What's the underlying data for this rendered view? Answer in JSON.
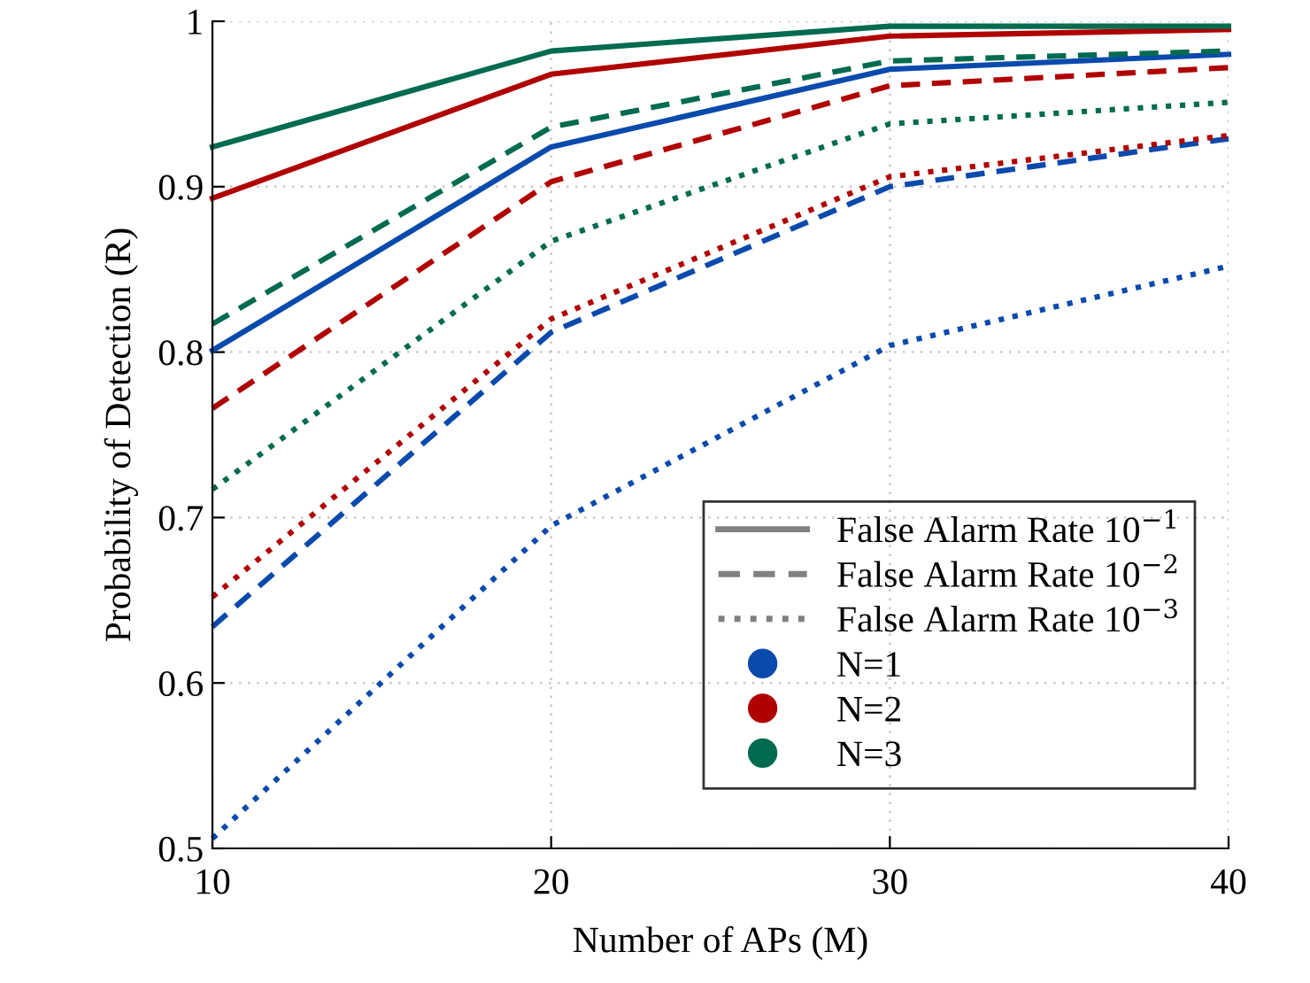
{
  "chart_data": {
    "type": "line",
    "xlabel": "Number of APs (M)",
    "ylabel": "Probability of Detection (R)",
    "x": [
      10,
      20,
      30,
      40
    ],
    "series": [
      {
        "name": "N=1",
        "color": "#0a4aad",
        "line_style": "solid",
        "values": [
          0.801,
          0.924,
          0.971,
          0.98
        ]
      },
      {
        "name": "N=2",
        "color": "#b00000",
        "line_style": "solid",
        "values": [
          0.893,
          0.968,
          0.991,
          0.995
        ]
      },
      {
        "name": "N=3",
        "color": "#006b4f",
        "line_style": "solid",
        "values": [
          0.924,
          0.982,
          0.997,
          0.997
        ]
      },
      {
        "color": "#0a4aad",
        "line_style": "dashed",
        "values": [
          0.634,
          0.812,
          0.9,
          0.929
        ]
      },
      {
        "color": "#b00000",
        "line_style": "dashed",
        "values": [
          0.766,
          0.903,
          0.961,
          0.972
        ]
      },
      {
        "color": "#006b4f",
        "line_style": "dashed",
        "values": [
          0.817,
          0.936,
          0.976,
          0.982
        ]
      },
      {
        "color": "#0a4aad",
        "line_style": "dotted",
        "values": [
          0.506,
          0.695,
          0.804,
          0.852
        ]
      },
      {
        "color": "#b00000",
        "line_style": "dotted",
        "values": [
          0.652,
          0.82,
          0.906,
          0.931
        ]
      },
      {
        "color": "#006b4f",
        "line_style": "dotted",
        "values": [
          0.717,
          0.867,
          0.938,
          0.951
        ]
      }
    ],
    "annotations": [
      "False Alarm Rate 10$^{−1}$",
      "False Alarm Rate 10$^{−2}$",
      "False Alarm Rate 10$^{−3}$"
    ],
    "xlim": [
      10,
      40
    ],
    "xticks": [
      10,
      20,
      30,
      40
    ],
    "ylim": [
      0.5,
      1
    ],
    "yticks": [
      0.5,
      0.6,
      0.7,
      0.8,
      0.9,
      {
        "value": 1,
        "label": "1"
      }
    ],
    "grid": true,
    "legend": "bottom right",
    "marker": "none"
  }
}
